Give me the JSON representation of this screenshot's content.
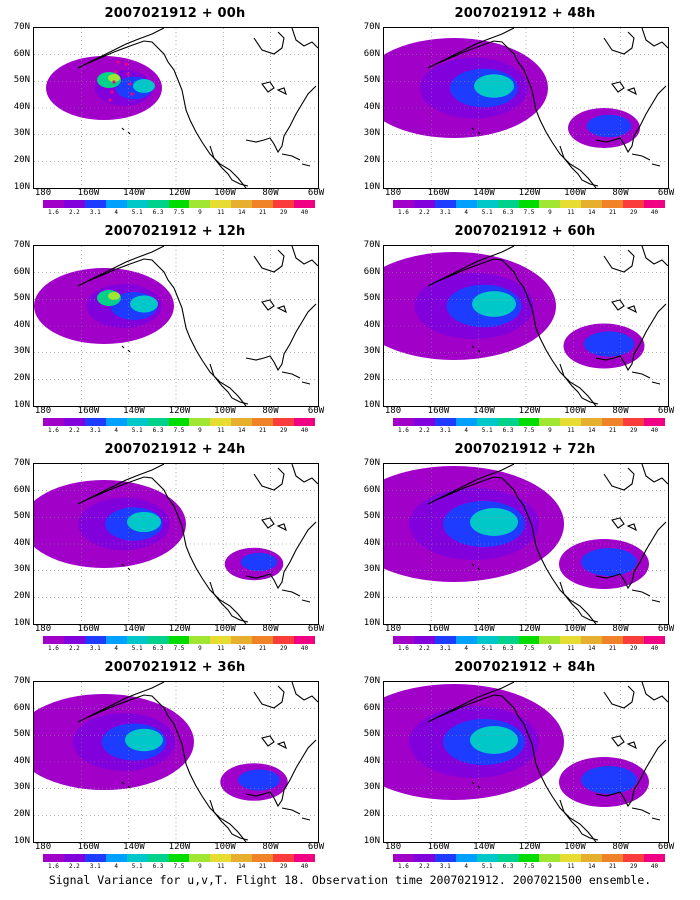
{
  "panels": [
    {
      "title": "2007021912 + 00h"
    },
    {
      "title": "2007021912 + 48h"
    },
    {
      "title": "2007021912 + 12h"
    },
    {
      "title": "2007021912 + 60h"
    },
    {
      "title": "2007021912 + 24h"
    },
    {
      "title": "2007021912 + 72h"
    },
    {
      "title": "2007021912 + 36h"
    },
    {
      "title": "2007021912 + 84h"
    }
  ],
  "lat_labels": [
    "70N",
    "60N",
    "50N",
    "40N",
    "30N",
    "20N",
    "10N"
  ],
  "lon_labels": [
    "180",
    "160W",
    "140W",
    "120W",
    "100W",
    "80W",
    "60W"
  ],
  "colorbar": {
    "colors": [
      "#a000c8",
      "#8200dc",
      "#1e3cff",
      "#00a0ff",
      "#00c8c8",
      "#00d28c",
      "#00dc00",
      "#a0e632",
      "#e6dc32",
      "#e6af2d",
      "#f08228",
      "#fa3c3c",
      "#f00082"
    ],
    "labels": [
      "1.6",
      "2.2",
      "3.1",
      "4",
      "5.1",
      "6.3",
      "7.5",
      "9",
      "11",
      "14",
      "21",
      "29",
      "40"
    ]
  },
  "caption": "Signal Variance for u,v,T. Flight 18. Observation time 2007021912. 2007021500 ensemble."
}
